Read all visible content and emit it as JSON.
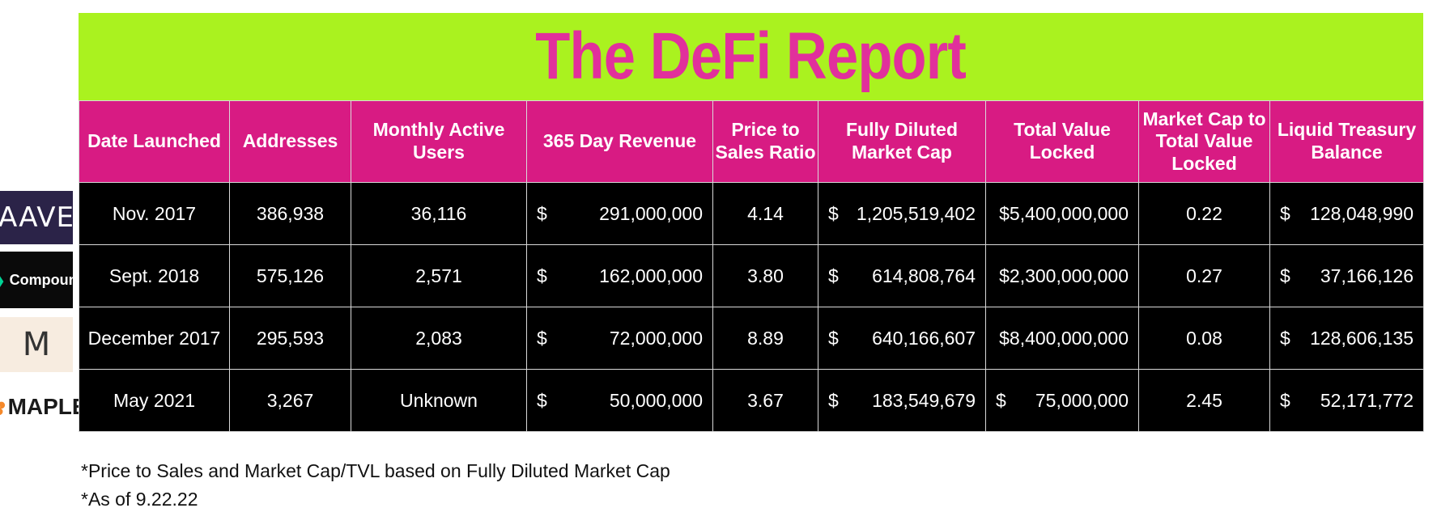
{
  "report": {
    "title": "The DeFi Report"
  },
  "table": {
    "headers": [
      "Date Launched",
      "Addresses",
      "Monthly Active Users",
      "365 Day Revenue",
      "Price to Sales Ratio",
      "Fully Diluted Market Cap",
      "Total Value Locked",
      "Market Cap to Total Value Locked",
      "Liquid Treasury Balance"
    ],
    "rows": [
      {
        "logo": {
          "text": "AAVE",
          "icon": "aave-logo"
        },
        "date": "Nov. 2017",
        "addresses": "386,938",
        "mau": "36,116",
        "revenue_sym": "$",
        "revenue": "291,000,000",
        "ps": "4.14",
        "fdmc_sym": "$",
        "fdmc": "1,205,519,402",
        "tvl_sym": "",
        "tvl": "$5,400,000,000",
        "mc_tvl": "0.22",
        "treasury_sym": "$",
        "treasury": "128,048,990"
      },
      {
        "logo": {
          "text": "Compound",
          "icon": "compound-logo"
        },
        "date": "Sept. 2018",
        "addresses": "575,126",
        "mau": "2,571",
        "revenue_sym": "$",
        "revenue": "162,000,000",
        "ps": "3.80",
        "fdmc_sym": "$",
        "fdmc": "614,808,764",
        "tvl_sym": "",
        "tvl": "$2,300,000,000",
        "mc_tvl": "0.27",
        "treasury_sym": "$",
        "treasury": "37,166,126"
      },
      {
        "logo": {
          "text": "M",
          "icon": "maker-logo"
        },
        "date": "December 2017",
        "addresses": "295,593",
        "mau": "2,083",
        "revenue_sym": "$",
        "revenue": "72,000,000",
        "ps": "8.89",
        "fdmc_sym": "$",
        "fdmc": "640,166,607",
        "tvl_sym": "",
        "tvl": "$8,400,000,000",
        "mc_tvl": "0.08",
        "treasury_sym": "$",
        "treasury": "128,606,135"
      },
      {
        "logo": {
          "text": "MAPLE",
          "icon": "maple-logo"
        },
        "date": "May 2021",
        "addresses": "3,267",
        "mau": "Unknown",
        "revenue_sym": "$",
        "revenue": "50,000,000",
        "ps": "3.67",
        "fdmc_sym": "$",
        "fdmc": "183,549,679",
        "tvl_sym": "$",
        "tvl": "75,000,000",
        "mc_tvl": "2.45",
        "treasury_sym": "$",
        "treasury": "52,171,772"
      }
    ]
  },
  "notes": [
    "*Price to Sales and Market Cap/TVL based on Fully Diluted Market Cap",
    "*As of 9.22.22"
  ]
}
